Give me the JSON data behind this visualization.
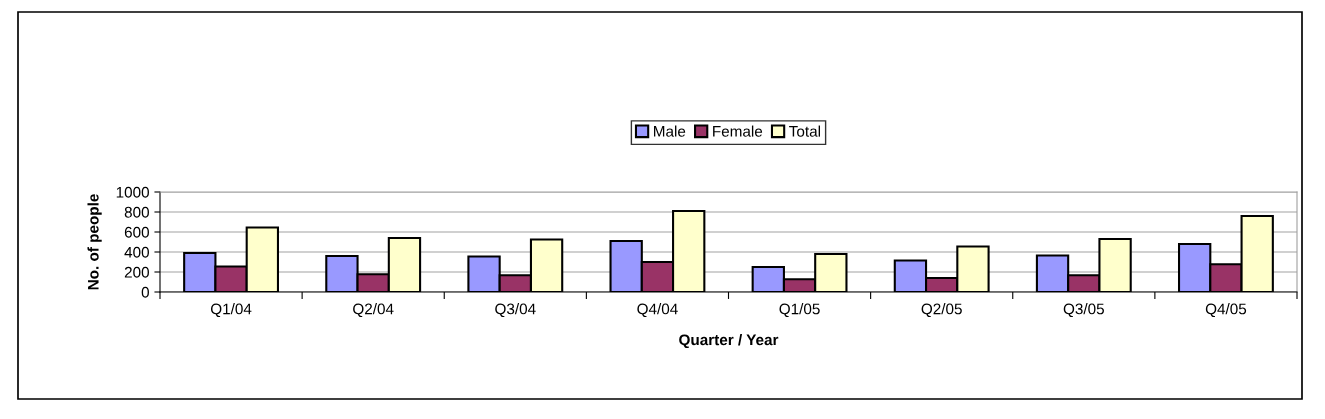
{
  "chart_data": {
    "type": "bar",
    "xlabel": "Quarter / Year",
    "ylabel": "No. of people",
    "categories": [
      "Q1/04",
      "Q2/04",
      "Q3/04",
      "Q4/04",
      "Q1/05",
      "Q2/05",
      "Q3/05",
      "Q4/05"
    ],
    "series": [
      {
        "name": "Male",
        "color": "#9999ff",
        "values": [
          390,
          360,
          355,
          510,
          250,
          315,
          365,
          480
        ]
      },
      {
        "name": "Female",
        "color": "#993366",
        "values": [
          255,
          178,
          168,
          300,
          128,
          140,
          168,
          278
        ]
      },
      {
        "name": "Total",
        "color": "#ffffcc",
        "values": [
          645,
          540,
          525,
          810,
          380,
          455,
          530,
          760
        ]
      }
    ],
    "ylim": [
      0,
      1000
    ],
    "yticks": [
      0,
      200,
      400,
      600,
      800,
      1000
    ],
    "grid": "y",
    "legend": "top"
  }
}
